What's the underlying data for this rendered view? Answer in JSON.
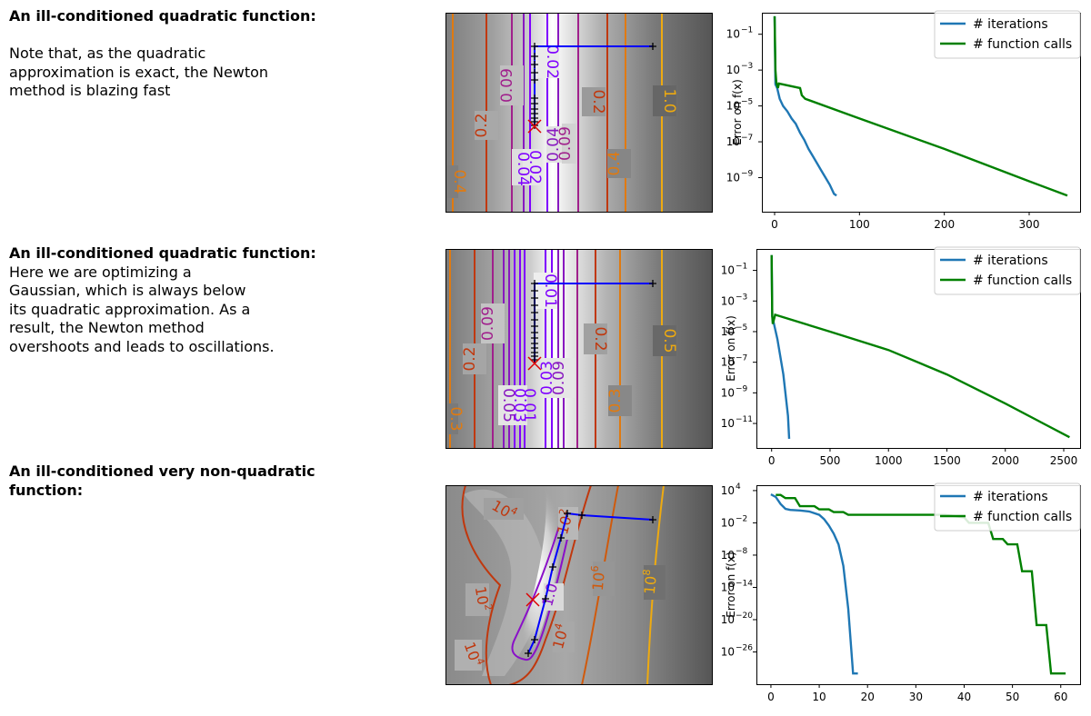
{
  "rows": [
    {
      "title": "An ill-conditioned quadratic function:",
      "body": [
        "",
        "Note that, as the quadratic",
        "approximation is exact, the Newton",
        "method is blazing fast"
      ]
    },
    {
      "title": "An ill-conditioned quadratic function:",
      "body": [
        "Here we are optimizing a",
        "Gaussian, which is always below",
        "its quadratic approximation. As a",
        "result, the Newton method",
        "overshoots and leads to oscillations."
      ]
    },
    {
      "title": "An ill-conditioned very non-quadratic",
      "title2": "function:",
      "body": []
    }
  ],
  "chart_data": [
    {
      "type": "line",
      "panel": "contour",
      "contour_labels": [
        "0.02",
        "0.09",
        "0.2",
        "1.0",
        "0.2",
        "0.04",
        "0.09",
        "0.4",
        "0.4",
        "0.02",
        "0.04"
      ],
      "optimization_path": "blue line with black '+' markers; red 'x' at start",
      "colors": {
        "low": "#7f00ff",
        "mid": "#c0380e",
        "high": "#eeaa10",
        "path": "#0000ff",
        "start": "#dd0000"
      }
    },
    {
      "type": "line",
      "panel": "error",
      "ylabel": "Error on f(x)",
      "yscale": "log",
      "ytick_exponents": [
        -1,
        -3,
        -5,
        -7,
        -9
      ],
      "xticks": [
        0,
        100,
        200,
        300
      ],
      "xlim": [
        -15,
        360
      ],
      "ylim_exp": [
        0.2,
        -10.9
      ],
      "legend": "top-right",
      "series": [
        {
          "name": "# iterations",
          "color": "#1f77b4",
          "x": [
            0,
            1,
            3,
            6,
            10,
            15,
            20,
            25,
            30,
            35,
            40,
            45,
            50,
            55,
            60,
            65,
            70,
            73
          ],
          "log10_y": [
            0,
            -3.8,
            -4.0,
            -4.6,
            -5.0,
            -5.3,
            -5.7,
            -6.0,
            -6.5,
            -6.9,
            -7.4,
            -7.8,
            -8.2,
            -8.6,
            -9.0,
            -9.4,
            -9.9,
            -10.0
          ]
        },
        {
          "name": "# function calls",
          "color": "#008000",
          "x": [
            0,
            1,
            2,
            4,
            5,
            30,
            32,
            36,
            100,
            200,
            300,
            345
          ],
          "log10_y": [
            0,
            -3.0,
            -3.7,
            -4.0,
            -3.75,
            -4.0,
            -4.4,
            -4.6,
            -5.7,
            -7.4,
            -9.2,
            -10.0
          ]
        }
      ]
    },
    {
      "type": "line",
      "panel": "contour",
      "contour_labels": [
        "0.01",
        "0.09",
        "0.2",
        "0.5",
        "0.2",
        "0.03",
        "0.09",
        "0.3",
        "0.3",
        "0.01",
        "0.03",
        "0.05"
      ],
      "optimization_path": "blue line with black '+' markers; red 'x' at start",
      "colors": {
        "low": "#7f00ff",
        "mid": "#c0380e",
        "high": "#eeaa10",
        "path": "#0000ff",
        "start": "#dd0000"
      }
    },
    {
      "type": "line",
      "panel": "error",
      "ylabel": "Error on f(x)",
      "yscale": "log",
      "ytick_exponents": [
        -1,
        -3,
        -5,
        -7,
        -9,
        -11
      ],
      "xticks": [
        0,
        500,
        1000,
        1500,
        2000,
        2500
      ],
      "xlim": [
        -130,
        2640
      ],
      "ylim_exp": [
        0.4,
        -12.6
      ],
      "legend": "top-right",
      "series": [
        {
          "name": "# iterations",
          "color": "#1f77b4",
          "x": [
            0,
            5,
            20,
            50,
            100,
            140,
            150
          ],
          "log10_y": [
            0,
            -4.0,
            -4.5,
            -5.5,
            -7.8,
            -10.5,
            -12.0
          ]
        },
        {
          "name": "# function calls",
          "color": "#008000",
          "x": [
            0,
            5,
            10,
            30,
            500,
            1000,
            1500,
            2000,
            2550
          ],
          "log10_y": [
            0,
            -4.0,
            -4.5,
            -3.9,
            -5.0,
            -6.2,
            -7.8,
            -9.7,
            -11.9
          ]
        }
      ]
    },
    {
      "type": "line",
      "panel": "contour",
      "contour_labels": [
        "10^4",
        "10^2",
        "10^2",
        "1.0",
        "10^4",
        "10^4",
        "10^6",
        "10^8"
      ],
      "optimization_path": "blue line with black '+' markers; red 'x' at start",
      "colors": {
        "low": "#7f00ff",
        "mid": "#c0380e",
        "high": "#eeaa10",
        "path": "#0000ff",
        "start": "#dd0000"
      }
    },
    {
      "type": "line",
      "panel": "error",
      "ylabel": "Error on f(x)",
      "yscale": "log",
      "ytick_exponents": [
        4,
        -2,
        -8,
        -14,
        -20,
        -26
      ],
      "xticks": [
        0,
        10,
        20,
        30,
        40,
        50,
        60
      ],
      "xlim": [
        -3,
        64
      ],
      "ylim_exp": [
        5,
        -32
      ],
      "legend": "top-right",
      "series": [
        {
          "name": "# iterations",
          "color": "#1f77b4",
          "x": [
            0,
            1,
            2,
            3,
            4,
            6,
            8,
            10,
            11,
            12,
            13,
            14,
            15,
            16,
            17,
            18
          ],
          "log10_y": [
            3.3,
            2.8,
            1.5,
            0.6,
            0.4,
            0.3,
            0.1,
            -0.5,
            -1.3,
            -2.5,
            -4.0,
            -6.0,
            -10.0,
            -18.0,
            -30.0,
            -30.0
          ]
        },
        {
          "name": "# function calls",
          "color": "#008000",
          "x": [
            1,
            2,
            3,
            5,
            6,
            9,
            10,
            12,
            13,
            15,
            16,
            20,
            36,
            40,
            41,
            45,
            46,
            48,
            49,
            51,
            52,
            54,
            55,
            57,
            58,
            61
          ],
          "log10_y": [
            3.2,
            3.2,
            2.6,
            2.6,
            1.1,
            1.1,
            0.5,
            0.5,
            0.0,
            0.0,
            -0.5,
            -0.5,
            -0.5,
            -1.0,
            -2.0,
            -2.0,
            -5.0,
            -5.0,
            -6.0,
            -6.0,
            -11.0,
            -11.0,
            -21.0,
            -21.0,
            -30.0,
            -30.0
          ]
        }
      ]
    }
  ]
}
